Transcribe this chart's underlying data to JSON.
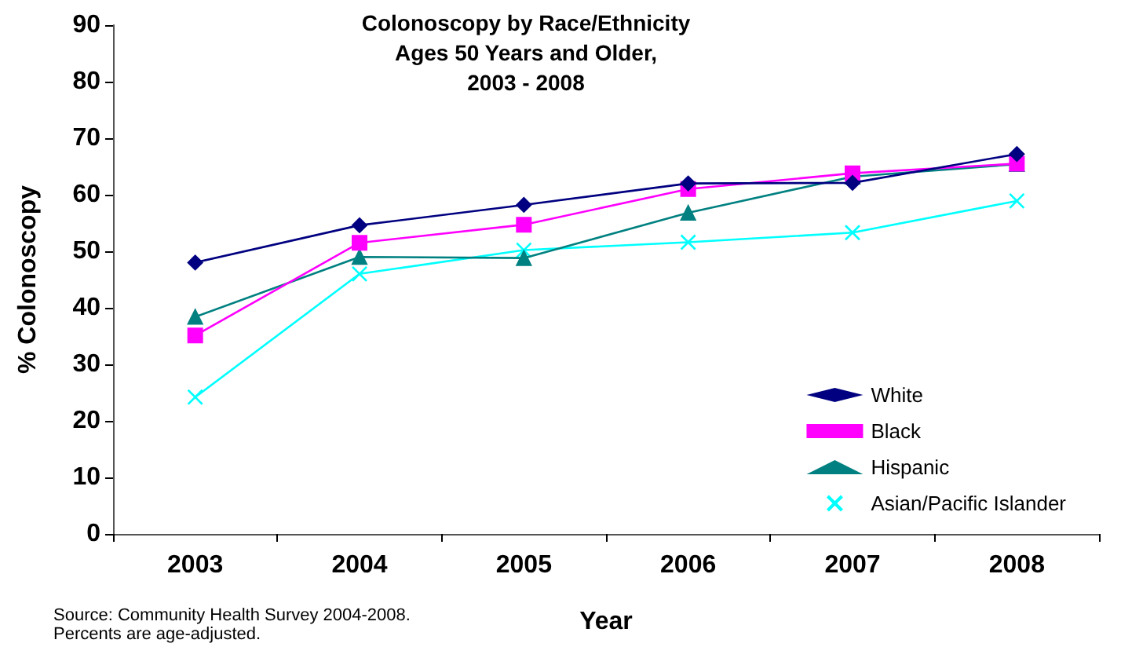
{
  "chart_data": {
    "type": "line",
    "title": "Colonoscopy by Race/Ethnicity\nAges 50 Years and Older,\n2003 - 2008",
    "xlabel": "Year",
    "ylabel": "% Colonoscopy",
    "categories": [
      "2003",
      "2004",
      "2005",
      "2006",
      "2007",
      "2008"
    ],
    "series": [
      {
        "name": "White",
        "color": "#000080",
        "marker": "diamond",
        "values": [
          48,
          54.6,
          58.2,
          62,
          62.1,
          67.2
        ]
      },
      {
        "name": "Black",
        "color": "#ff00ff",
        "marker": "square",
        "values": [
          35.1,
          51.5,
          54.7,
          61,
          63.8,
          65.5
        ]
      },
      {
        "name": "Hispanic",
        "color": "#008080",
        "marker": "triangle",
        "values": [
          38.4,
          49,
          48.8,
          56.8,
          63.2,
          65.4
        ]
      },
      {
        "name": "Asian/Pacific Islander",
        "color": "#00ffff",
        "marker": "cross",
        "values": [
          24.2,
          46,
          50.2,
          51.6,
          53.3,
          58.9
        ]
      }
    ],
    "ylim": [
      0,
      90
    ],
    "yticks": [
      0,
      10,
      20,
      30,
      40,
      50,
      60,
      70,
      80,
      90
    ],
    "grid": false,
    "legend": "bottom right",
    "annotations": [
      "Source: Community Health Survey 2004-2008.\nPercents are age-adjusted."
    ]
  }
}
